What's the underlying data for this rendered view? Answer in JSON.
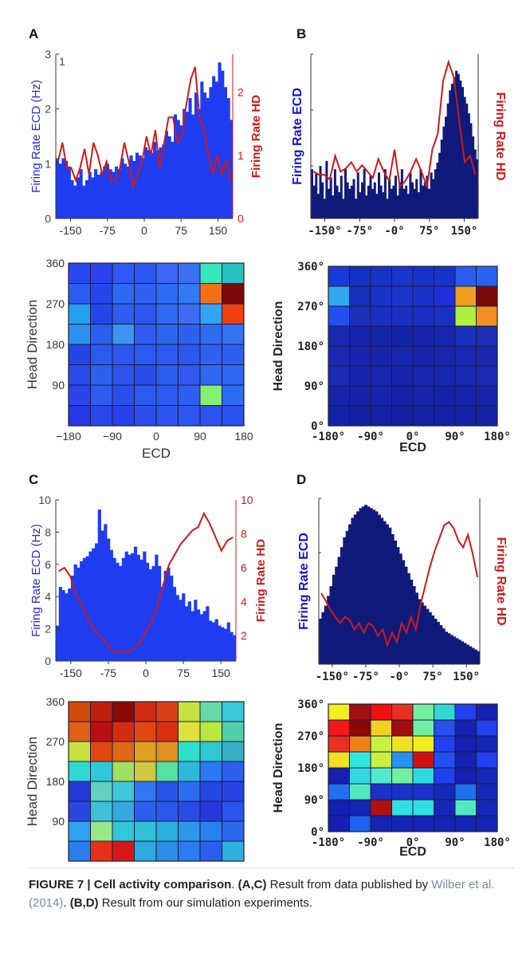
{
  "panel_labels": [
    "A",
    "B",
    "C",
    "D"
  ],
  "caption": {
    "figure_label": "FIGURE 7 | Cell activity comparison",
    "part1_label": "(A,C)",
    "part1_text": " Result from data published by ",
    "part1_ref": "Wilber et al. (2014)",
    "part2_label": "(B,D)",
    "part2_text": " Result from our simulation experiments."
  },
  "colors": {
    "wilber_bar": "#1f3cf0",
    "sim_bar": "#101a7a",
    "hd_line": "#cc1a1a",
    "ecd_label_wilber": "#2a2ad0",
    "ecd_label_sim": "#1010e0"
  },
  "chart_data": [
    {
      "panel": "A",
      "type": "bar",
      "series": [
        {
          "name": "Firing Rate ECD",
          "values": [
            1.1,
            1.0,
            1.1,
            1.05,
            0.95,
            0.7,
            0.6,
            0.75,
            0.9,
            0.6,
            0.7,
            0.85,
            0.75,
            0.9,
            0.8,
            0.85,
            0.95,
            1.0,
            0.9,
            0.85,
            0.95,
            0.9,
            1.1,
            1.0,
            0.95,
            1.15,
            1.05,
            1.2,
            1.15,
            1.1,
            1.3,
            1.25,
            1.2,
            1.4,
            1.25,
            1.3,
            1.35,
            1.6,
            1.5,
            1.4,
            1.9,
            1.8,
            1.7,
            2.0,
            1.95,
            2.2,
            1.9,
            2.3,
            2.0,
            2.5,
            2.3,
            2.2,
            2.4,
            2.6,
            2.5,
            2.85,
            2.7,
            2.4,
            2.2,
            1.8
          ]
        },
        {
          "name": "Firing Rate HD",
          "axis": "right",
          "values": [
            0.9,
            1.2,
            0.8,
            0.8,
            0.6,
            0.8,
            1.1,
            0.7,
            1.2,
            1.0,
            0.7,
            0.9,
            0.6,
            0.6,
            0.8,
            1.2,
            0.9,
            0.5,
            0.7,
            0.9,
            1.3,
            1.0,
            1.4,
            0.8,
            1.2,
            1.6,
            1.6,
            1.2,
            1.3,
            1.8,
            2.2,
            2.4,
            1.6,
            1.4,
            1.0,
            0.7,
            1.0,
            0.7,
            0.9,
            0.6
          ]
        }
      ],
      "x_range": [
        -180,
        180
      ],
      "x_ticks": [
        "-150",
        "-75",
        "0",
        "75",
        "150"
      ],
      "y_left_ticks": [
        "0",
        "1",
        "2",
        "3"
      ],
      "y_left_top_extra": "1",
      "y_right_ticks": [
        "0",
        "1",
        "2"
      ],
      "ylabel": "Firing Rate ECD (Hz)",
      "ylabel_right_a": "Firing ",
      "ylabel_right_b": "Rate HD",
      "ylim": [
        0,
        3
      ]
    },
    {
      "panel": "B",
      "type": "bar",
      "series": [
        {
          "name": "Firing Rate ECD",
          "values": [
            0.3,
            0.2,
            0.28,
            0.15,
            0.32,
            0.22,
            0.12,
            0.35,
            0.18,
            0.25,
            0.14,
            0.3,
            0.2,
            0.16,
            0.26,
            0.12,
            0.3,
            0.22,
            0.18,
            0.2,
            0.24,
            0.12,
            0.28,
            0.16,
            0.22,
            0.3,
            0.14,
            0.2,
            0.26,
            0.18,
            0.22,
            0.15,
            0.28,
            0.2,
            0.16,
            0.3,
            0.12,
            0.24,
            0.18,
            0.2,
            0.26,
            0.14,
            0.22,
            0.3,
            0.18,
            0.2,
            0.15,
            0.28,
            0.22,
            0.18,
            0.24,
            0.16,
            0.3,
            0.2,
            0.22,
            0.26,
            0.18,
            0.28,
            0.24,
            0.3,
            0.34,
            0.4,
            0.48,
            0.56,
            0.62,
            0.7,
            0.78,
            0.82,
            0.86,
            0.9,
            0.88,
            0.84,
            0.8,
            0.74,
            0.7,
            0.64,
            0.58,
            0.5,
            0.42,
            0.36
          ]
        },
        {
          "name": "Firing Rate HD",
          "axis": "right",
          "values": [
            0.3,
            0.28,
            0.28,
            0.25,
            0.4,
            0.3,
            0.32,
            0.36,
            0.3,
            0.34,
            0.3,
            0.26,
            0.38,
            0.3,
            0.24,
            0.44,
            0.2,
            0.24,
            0.3,
            0.38,
            0.3,
            0.2,
            0.44,
            0.54,
            0.88,
            1.0,
            0.9,
            0.62,
            0.36,
            0.4,
            0.28
          ]
        }
      ],
      "x_range": [
        -180,
        180
      ],
      "x_ticks": [
        "-150°",
        "-75°",
        "-0°",
        "75°",
        "150°"
      ],
      "ylabel_a": "Firing ",
      "ylabel_b": "Rate ECD",
      "ylabel_right_a": "Firing ",
      "ylabel_right_b": "Rate HD"
    },
    {
      "panel": "A2",
      "type": "heatmap",
      "x_ticks": [
        "−180",
        "−90",
        "0",
        "90",
        "180"
      ],
      "y_ticks": [
        "90",
        "180",
        "270",
        "360"
      ],
      "xlabel": "ECD",
      "ylabel": "Head Direction",
      "grid": [
        [
          "#2a48f0",
          "#2c44ee",
          "#3058f2",
          "#2a58f0",
          "#3c66f4",
          "#3a70f4",
          "#36e8b8",
          "#28c0c0"
        ],
        [
          "#2a5cf2",
          "#2446ec",
          "#2c6af2",
          "#3060f2",
          "#2c6cf2",
          "#3478f4",
          "#f07018",
          "#7c0a0a"
        ],
        [
          "#24a0f0",
          "#2448e8",
          "#2e5ef0",
          "#2c56ee",
          "#2e6af2",
          "#3a6cf4",
          "#34a4f2",
          "#f04010"
        ],
        [
          "#2c92f0",
          "#2a5eee",
          "#3a96f0",
          "#2e5af0",
          "#2a66f0",
          "#2e60f0",
          "#306cf2",
          "#3474f2"
        ],
        [
          "#2444e8",
          "#2a5aee",
          "#2e56ee",
          "#2a5af0",
          "#2e58f0",
          "#2c58f0",
          "#3060f2",
          "#2e5ef0"
        ],
        [
          "#2a4aea",
          "#2c60f0",
          "#2e54ee",
          "#2c4cea",
          "#2a5cf0",
          "#2e58f0",
          "#3068f2",
          "#2e68f2"
        ],
        [
          "#2c44e8",
          "#2e5cee",
          "#2a50ec",
          "#2c5aee",
          "#2e5cf0",
          "#2c60f0",
          "#88f070",
          "#2c6cf2"
        ],
        [
          "#2438e4",
          "#2a48ea",
          "#2840e8",
          "#2c4eec",
          "#2c54ee",
          "#2c56ee",
          "#2e52ee",
          "#2c52ee"
        ]
      ]
    },
    {
      "panel": "B2",
      "type": "heatmap",
      "x_ticks": [
        "-180°",
        "-90°",
        "0°",
        "90°",
        "180°"
      ],
      "y_ticks": [
        "0°",
        "90°",
        "180°",
        "270°",
        "360°"
      ],
      "xlabel": "ECD",
      "ylabel": "Head Direction",
      "grid": [
        [
          "#1a3ad8",
          "#1430c0",
          "#1832c8",
          "#1a34cc",
          "#1832c8",
          "#1834c8",
          "#2a5cf0",
          "#2a64f0"
        ],
        [
          "#30a8f0",
          "#1430b8",
          "#1a34c8",
          "#1c36cc",
          "#1a34c8",
          "#2030d8",
          "#f0a020",
          "#7c0a0a"
        ],
        [
          "#2050f0",
          "#1a30b8",
          "#1a2ec4",
          "#1a2ec4",
          "#1a2ec4",
          "#1a32c0",
          "#b0f040",
          "#f09020"
        ],
        [
          "#1828b0",
          "#1624b0",
          "#1426a8",
          "#1424aa",
          "#1624ac",
          "#1626b0",
          "#1a30bc",
          "#1a2eb8"
        ],
        [
          "#1a28b0",
          "#1624ae",
          "#1624ac",
          "#1626ae",
          "#1624ac",
          "#1826ae",
          "#1828b0",
          "#1826b0"
        ],
        [
          "#1a2cb4",
          "#1624ae",
          "#1826b0",
          "#1624ae",
          "#1826b0",
          "#1628b0",
          "#1828b4",
          "#1a2ab4"
        ],
        [
          "#1624ac",
          "#1622aa",
          "#1624ac",
          "#1422a8",
          "#1624ac",
          "#1422a8",
          "#1624ac",
          "#1624ac"
        ],
        [
          "#1422a8",
          "#1420a4",
          "#1422a6",
          "#1420a4",
          "#1422a6",
          "#1422a6",
          "#1422a6",
          "#1422a6"
        ]
      ]
    },
    {
      "panel": "C",
      "type": "bar",
      "series": [
        {
          "name": "Firing Rate ECD",
          "values": [
            2.2,
            4.6,
            4.4,
            4.2,
            4.5,
            5.3,
            6.0,
            5.8,
            6.2,
            6.4,
            6.5,
            6.8,
            7.0,
            7.3,
            9.4,
            8.1,
            8.5,
            7.6,
            6.9,
            6.4,
            6.1,
            5.9,
            6.4,
            6.8,
            6.6,
            6.7,
            7.1,
            6.6,
            6.3,
            6.8,
            6.1,
            5.7,
            5.9,
            6.6,
            5.9,
            4.6,
            5.6,
            5.8,
            5.3,
            4.6,
            4.1,
            3.8,
            4.2,
            3.4,
            3.7,
            3.1,
            3.8,
            3.2,
            2.9,
            3.1,
            3.4,
            2.5,
            2.4,
            2.6,
            2.2,
            2.1,
            2.0,
            2.4,
            1.8,
            1.6
          ]
        },
        {
          "name": "Firing Rate HD",
          "axis": "right",
          "values": [
            5.8,
            6.0,
            5.5,
            4.4,
            3.8,
            3.0,
            2.4,
            2.0,
            1.6,
            1.2,
            1.0,
            1.1,
            1.0,
            1.3,
            1.6,
            2.2,
            2.8,
            3.8,
            5.0,
            6.2,
            6.8,
            7.4,
            7.8,
            8.2,
            8.4,
            9.2,
            8.6,
            7.8,
            7.0,
            7.6,
            7.8
          ]
        }
      ],
      "x_range": [
        -180,
        180
      ],
      "x_ticks": [
        "-150",
        "-75",
        "0",
        "75",
        "150"
      ],
      "y_left_ticks": [
        "0",
        "2",
        "4",
        "6",
        "8",
        "10"
      ],
      "y_right_ticks": [
        "2",
        "4",
        "6",
        "8",
        "10"
      ],
      "ylabel": "Firing Rate ECD (Hz)",
      "ylabel_right": "Firing Rate HD",
      "ylim": [
        0,
        10
      ]
    },
    {
      "panel": "D",
      "type": "bar",
      "series": [
        {
          "name": "Firing Rate ECD",
          "values": [
            0.28,
            0.32,
            0.36,
            0.42,
            0.48,
            0.55,
            0.6,
            0.66,
            0.72,
            0.78,
            0.82,
            0.86,
            0.9,
            0.92,
            0.94,
            0.96,
            0.97,
            0.98,
            0.97,
            0.96,
            0.95,
            0.94,
            0.92,
            0.9,
            0.88,
            0.86,
            0.84,
            0.8,
            0.76,
            0.72,
            0.68,
            0.64,
            0.6,
            0.56,
            0.52,
            0.48,
            0.44,
            0.4,
            0.38,
            0.36,
            0.34,
            0.32,
            0.3,
            0.28,
            0.26,
            0.24,
            0.22,
            0.2,
            0.19,
            0.18,
            0.17,
            0.16,
            0.15,
            0.14,
            0.13,
            0.12,
            0.11,
            0.1,
            0.09,
            0.08
          ]
        },
        {
          "name": "Firing Rate HD",
          "axis": "right",
          "values": [
            0.45,
            0.4,
            0.34,
            0.3,
            0.26,
            0.3,
            0.28,
            0.22,
            0.26,
            0.2,
            0.26,
            0.24,
            0.18,
            0.22,
            0.12,
            0.2,
            0.14,
            0.26,
            0.2,
            0.3,
            0.22,
            0.38,
            0.5,
            0.62,
            0.72,
            0.8,
            0.88,
            0.9,
            0.86,
            0.78,
            0.74,
            0.82,
            0.7,
            0.55
          ]
        }
      ],
      "x_range": [
        -180,
        180
      ],
      "x_ticks": [
        "-150°",
        "-75°",
        "-0°",
        "75°",
        "150°"
      ],
      "ylabel_a": "Firing ",
      "ylabel_b": "Rate ECD",
      "ylabel_right_a": "Firing ",
      "ylabel_right_b": "Rate HD"
    },
    {
      "panel": "C2",
      "type": "heatmap",
      "x_ticks": [
        "−180",
        "−90",
        "0",
        "90",
        "180"
      ],
      "y_ticks": [
        "90",
        "180",
        "270",
        "360"
      ],
      "xlabel": "ECD",
      "ylabel": "Head Direction",
      "grid": [
        [
          "#d04a0a",
          "#c02010",
          "#8c0808",
          "#d02a10",
          "#d8401a",
          "#c8e040",
          "#68d8a8",
          "#38c8d8"
        ],
        [
          "#e06018",
          "#b81010",
          "#d42a12",
          "#e04812",
          "#d83010",
          "#e0e040",
          "#b8e840",
          "#50d0a8"
        ],
        [
          "#c8e040",
          "#e04810",
          "#e06818",
          "#e0a020",
          "#e09020",
          "#30e0c8",
          "#30c8d0",
          "#38b0c8"
        ],
        [
          "#30d8d8",
          "#30c8d8",
          "#a0e060",
          "#d0c840",
          "#58e0a0",
          "#30b8d8",
          "#2c78f0",
          "#2a60ee"
        ],
        [
          "#2438d8",
          "#60d0c0",
          "#40c8d8",
          "#3078f0",
          "#2a54e8",
          "#2c6cf0",
          "#2448e0",
          "#2844e4"
        ],
        [
          "#2a48e0",
          "#40c0d8",
          "#38a8e0",
          "#2c60ec",
          "#2a58e8",
          "#2a4ce4",
          "#2638dc",
          "#2a54ec"
        ],
        [
          "#30a0f0",
          "#98e888",
          "#30c8d8",
          "#30c0d8",
          "#2cb0dc",
          "#2e98e8",
          "#2a80f0",
          "#2c68ec"
        ],
        [
          "#2a7cf0",
          "#e83018",
          "#d81818",
          "#30a8e0",
          "#2c90e8",
          "#2c7cf0",
          "#2a60ee",
          "#30b0e0"
        ]
      ]
    },
    {
      "panel": "D2",
      "type": "heatmap",
      "x_ticks": [
        "-180°",
        "-90°",
        "0°",
        "90°",
        "180°"
      ],
      "y_ticks": [
        "0°",
        "90°",
        "180°",
        "270°",
        "360°"
      ],
      "xlabel": "ECD",
      "ylabel": "Head Direction",
      "grid": [
        [
          "#f0f020",
          "#a01010",
          "#f01010",
          "#e83020",
          "#70f0a0",
          "#30d8d0",
          "#2040f0",
          "#1420b0"
        ],
        [
          "#f01818",
          "#8c0808",
          "#f0d020",
          "#a00c0c",
          "#70f0a0",
          "#2850f0",
          "#1420b0",
          "#2040f0"
        ],
        [
          "#e83020",
          "#f08018",
          "#c8f040",
          "#f0e020",
          "#f0f020",
          "#2040f0",
          "#1420b0",
          "#1424b4"
        ],
        [
          "#f0e020",
          "#30e8e0",
          "#c8f040",
          "#2890f0",
          "#d01010",
          "#2050f0",
          "#1420b0",
          "#2040f0"
        ],
        [
          "#1420b0",
          "#30d8e0",
          "#50e8d0",
          "#70f0a0",
          "#30d8e0",
          "#2040f0",
          "#1420b0",
          "#1428b8"
        ],
        [
          "#2070f0",
          "#50e8c0",
          "#1a30c8",
          "#1a30c8",
          "#1a30c8",
          "#1428b8",
          "#2070f0",
          "#1428b8"
        ],
        [
          "#1420b0",
          "#1424b4",
          "#b01010",
          "#30e0e0",
          "#30e0e0",
          "#1428b8",
          "#50e8c0",
          "#1428b8"
        ],
        [
          "#1420b0",
          "#2060f0",
          "#1424b4",
          "#1424b4",
          "#1424b4",
          "#1424b4",
          "#1424b4",
          "#1424b4"
        ]
      ]
    }
  ]
}
